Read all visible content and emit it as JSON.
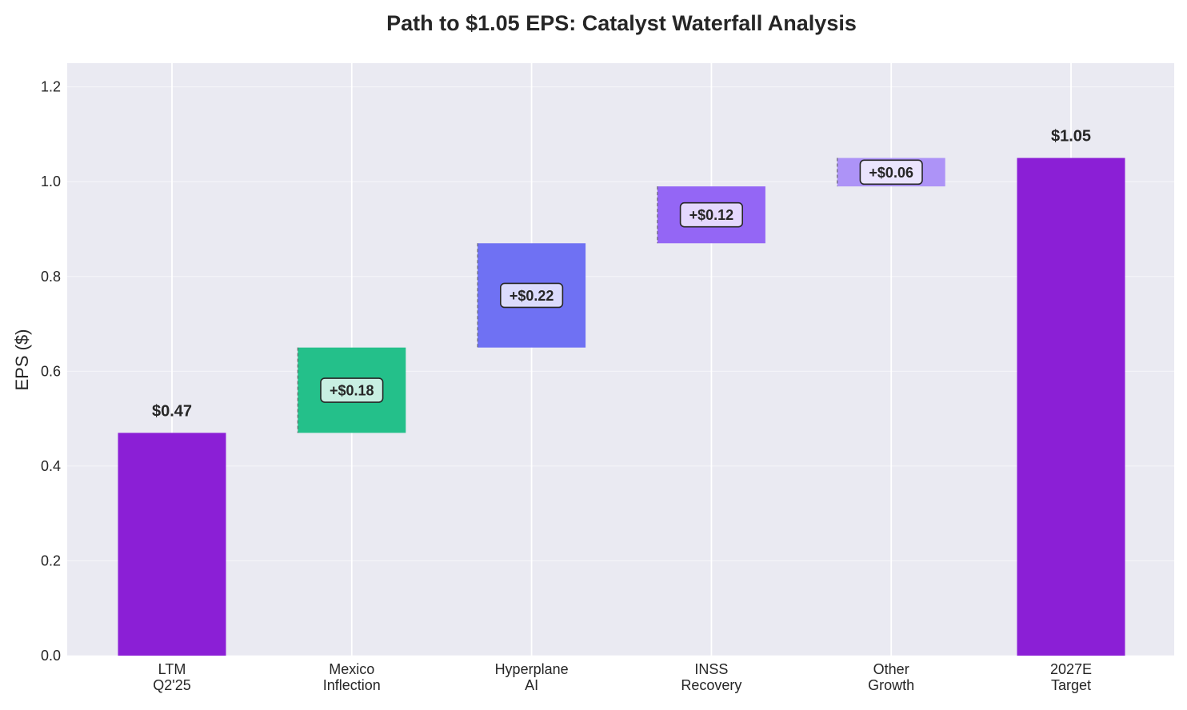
{
  "chart_data": {
    "type": "bar",
    "subtype": "waterfall",
    "title": "Path to $1.05 EPS: Catalyst Waterfall Analysis",
    "ylabel": "EPS ($)",
    "xlabel": "",
    "ylim": [
      0,
      1.25
    ],
    "yticks": [
      "0.0",
      "0.2",
      "0.4",
      "0.6",
      "0.8",
      "1.0",
      "1.2"
    ],
    "grid": true,
    "categories": [
      [
        "LTM",
        "Q2'25"
      ],
      [
        "Mexico",
        "Inflection"
      ],
      [
        "Hyperplane",
        "AI"
      ],
      [
        "INSS",
        "Recovery"
      ],
      [
        "Other",
        "Growth"
      ],
      [
        "2027E",
        "Target"
      ]
    ],
    "steps": [
      {
        "kind": "total",
        "start": 0,
        "end": 0.47,
        "label": "$0.47",
        "color": "#8b1fd6"
      },
      {
        "kind": "delta",
        "start": 0.47,
        "end": 0.65,
        "label": "+$0.18",
        "color": "#24c08a"
      },
      {
        "kind": "delta",
        "start": 0.65,
        "end": 0.87,
        "label": "+$0.22",
        "color": "#6f71f3"
      },
      {
        "kind": "delta",
        "start": 0.87,
        "end": 0.99,
        "label": "+$0.12",
        "color": "#9466f5"
      },
      {
        "kind": "delta",
        "start": 0.99,
        "end": 1.05,
        "label": "+$0.06",
        "color": "#ad93f7"
      },
      {
        "kind": "total",
        "start": 0,
        "end": 1.05,
        "label": "$1.05",
        "color": "#8b1fd6"
      }
    ]
  }
}
